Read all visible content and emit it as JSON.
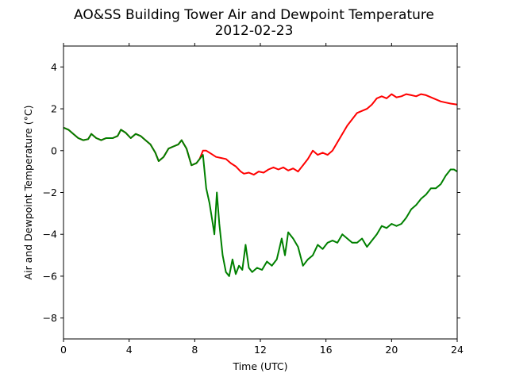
{
  "chart_data": {
    "type": "line",
    "title": "AO&SS Building Tower Air and Dewpoint Temperature",
    "subtitle": "2012-02-23",
    "xlabel": "Time (UTC)",
    "ylabel": "Air and Dewpoint Temperature (°C)",
    "xlim": [
      0,
      24
    ],
    "ylim": [
      -9,
      5
    ],
    "xticks": [
      0,
      4,
      8,
      12,
      16,
      20,
      24
    ],
    "yticks": [
      -8,
      -6,
      -4,
      -2,
      0,
      2,
      4
    ],
    "grid": false,
    "series": [
      {
        "color": "#ff0000",
        "x": [
          0,
          0.3,
          0.6,
          0.9,
          1.2,
          1.5,
          1.7,
          2.0,
          2.3,
          2.6,
          3.0,
          3.3,
          3.5,
          3.8,
          4.1,
          4.4,
          4.7,
          5.0,
          5.3,
          5.6,
          5.8,
          6.1,
          6.4,
          6.7,
          7.0,
          7.2,
          7.5,
          7.8,
          8.1,
          8.3,
          8.5,
          8.7,
          9.0,
          9.3,
          9.6,
          9.9,
          10.2,
          10.5,
          10.8,
          11.0,
          11.3,
          11.6,
          11.9,
          12.2,
          12.5,
          12.8,
          13.1,
          13.4,
          13.7,
          14.0,
          14.3,
          14.6,
          14.9,
          15.2,
          15.5,
          15.8,
          16.1,
          16.4,
          16.7,
          17.0,
          17.3,
          17.6,
          17.9,
          18.2,
          18.5,
          18.8,
          19.1,
          19.4,
          19.7,
          20.0,
          20.3,
          20.6,
          20.9,
          21.2,
          21.5,
          21.8,
          22.1,
          22.4,
          22.7,
          23.0,
          23.3,
          23.6,
          24.0
        ],
        "y": [
          1.1,
          1.0,
          0.8,
          0.6,
          0.5,
          0.55,
          0.8,
          0.6,
          0.5,
          0.6,
          0.6,
          0.7,
          1.0,
          0.85,
          0.6,
          0.8,
          0.7,
          0.5,
          0.3,
          -0.1,
          -0.5,
          -0.3,
          0.1,
          0.2,
          0.3,
          0.5,
          0.1,
          -0.7,
          -0.6,
          -0.4,
          0.0,
          0.0,
          -0.15,
          -0.3,
          -0.35,
          -0.4,
          -0.6,
          -0.75,
          -1.0,
          -1.1,
          -1.05,
          -1.15,
          -1.0,
          -1.05,
          -0.9,
          -0.8,
          -0.9,
          -0.8,
          -0.95,
          -0.85,
          -1.0,
          -0.7,
          -0.4,
          0.0,
          -0.2,
          -0.1,
          -0.2,
          0.0,
          0.4,
          0.8,
          1.2,
          1.5,
          1.8,
          1.9,
          2.0,
          2.2,
          2.5,
          2.6,
          2.5,
          2.7,
          2.55,
          2.6,
          2.7,
          2.65,
          2.6,
          2.7,
          2.65,
          2.55,
          2.45,
          2.35,
          2.3,
          2.25,
          2.2
        ]
      },
      {
        "color": "#008000",
        "x": [
          0,
          0.3,
          0.6,
          0.9,
          1.2,
          1.5,
          1.7,
          2.0,
          2.3,
          2.6,
          3.0,
          3.3,
          3.5,
          3.8,
          4.1,
          4.4,
          4.7,
          5.0,
          5.3,
          5.6,
          5.8,
          6.1,
          6.4,
          6.7,
          7.0,
          7.2,
          7.5,
          7.8,
          8.1,
          8.3,
          8.5,
          8.7,
          8.9,
          9.1,
          9.2,
          9.35,
          9.5,
          9.7,
          9.9,
          10.1,
          10.3,
          10.5,
          10.7,
          10.9,
          11.1,
          11.3,
          11.5,
          11.8,
          12.1,
          12.4,
          12.7,
          13.0,
          13.3,
          13.5,
          13.7,
          14.0,
          14.3,
          14.6,
          14.9,
          15.2,
          15.5,
          15.8,
          16.1,
          16.4,
          16.7,
          17.0,
          17.3,
          17.6,
          17.9,
          18.2,
          18.5,
          18.8,
          19.1,
          19.4,
          19.7,
          20.0,
          20.3,
          20.6,
          20.9,
          21.2,
          21.5,
          21.8,
          22.1,
          22.4,
          22.7,
          23.0,
          23.3,
          23.6,
          23.8,
          24.0
        ],
        "y": [
          1.1,
          1.0,
          0.8,
          0.6,
          0.5,
          0.55,
          0.8,
          0.6,
          0.5,
          0.6,
          0.6,
          0.7,
          1.0,
          0.85,
          0.6,
          0.8,
          0.7,
          0.5,
          0.3,
          -0.1,
          -0.5,
          -0.3,
          0.1,
          0.2,
          0.3,
          0.5,
          0.1,
          -0.7,
          -0.6,
          -0.4,
          -0.2,
          -1.8,
          -2.5,
          -3.5,
          -4.0,
          -2.0,
          -3.5,
          -5.0,
          -5.8,
          -6.0,
          -5.2,
          -5.9,
          -5.5,
          -5.7,
          -4.5,
          -5.6,
          -5.8,
          -5.6,
          -5.7,
          -5.3,
          -5.5,
          -5.2,
          -4.2,
          -5.0,
          -3.9,
          -4.2,
          -4.6,
          -5.5,
          -5.2,
          -5.0,
          -4.5,
          -4.7,
          -4.4,
          -4.3,
          -4.4,
          -4.0,
          -4.2,
          -4.4,
          -4.4,
          -4.2,
          -4.6,
          -4.3,
          -4.0,
          -3.6,
          -3.7,
          -3.5,
          -3.6,
          -3.5,
          -3.2,
          -2.8,
          -2.6,
          -2.3,
          -2.1,
          -1.8,
          -1.8,
          -1.6,
          -1.2,
          -0.9,
          -0.9,
          -1.0
        ]
      }
    ]
  }
}
